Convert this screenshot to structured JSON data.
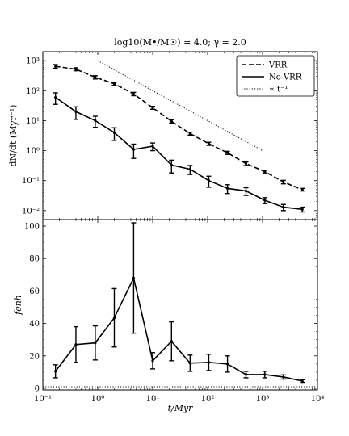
{
  "chart_data": [
    {
      "type": "line",
      "panel": "top",
      "title": "log10(M•/M☉) = 4.0; γ = 2.0",
      "xlabel": "t/Myr",
      "ylabel": "dN/dt (Myr⁻¹)",
      "xscale": "log",
      "yscale": "log",
      "xlim": [
        0.1,
        10000
      ],
      "ylim": [
        0.005,
        2000
      ],
      "legend_position": "top-right",
      "series": [
        {
          "name": "VRR",
          "style": "dashed",
          "x": [
            0.17,
            0.4,
            0.9,
            2.0,
            4.5,
            10,
            22,
            48,
            105,
            230,
            500,
            1100,
            2400,
            5300
          ],
          "y": [
            650,
            520,
            280,
            170,
            78,
            27,
            9.5,
            3.7,
            1.7,
            0.85,
            0.37,
            0.2,
            0.09,
            0.05
          ],
          "err_low": [
            90,
            60,
            35,
            20,
            10,
            3,
            1.2,
            0.4,
            0.2,
            0.1,
            0.05,
            0.02,
            0.012,
            0.005
          ],
          "err_high": [
            90,
            60,
            35,
            20,
            10,
            3,
            1.2,
            0.4,
            0.2,
            0.1,
            0.05,
            0.02,
            0.012,
            0.005
          ]
        },
        {
          "name": "No VRR",
          "style": "solid",
          "x": [
            0.17,
            0.4,
            0.9,
            2.0,
            4.5,
            10,
            22,
            48,
            105,
            230,
            500,
            1100,
            2400,
            5300
          ],
          "y": [
            60,
            20,
            10,
            4,
            1.1,
            1.4,
            0.33,
            0.24,
            0.1,
            0.055,
            0.045,
            0.022,
            0.013,
            0.011
          ],
          "err_low": [
            25,
            9,
            4,
            1.8,
            0.55,
            0.4,
            0.15,
            0.08,
            0.04,
            0.018,
            0.013,
            0.005,
            0.003,
            0.002
          ],
          "err_high": [
            25,
            9,
            4,
            1.8,
            0.55,
            0.4,
            0.15,
            0.08,
            0.04,
            0.018,
            0.013,
            0.005,
            0.003,
            0.002
          ]
        },
        {
          "name": "∝ t⁻¹",
          "style": "dotted",
          "x": [
            1,
            1000
          ],
          "y": [
            1000,
            1
          ]
        }
      ],
      "x_tick_labels": [
        "10⁻¹",
        "10⁰",
        "10¹",
        "10²",
        "10³",
        "10⁴"
      ],
      "y_tick_labels": [
        "10⁻²",
        "10⁻¹",
        "10⁰",
        "10¹",
        "10²",
        "10³"
      ]
    },
    {
      "type": "line",
      "panel": "bottom",
      "xlabel": "t/Myr",
      "ylabel": "f_enh",
      "xscale": "log",
      "yscale": "linear",
      "xlim": [
        0.1,
        10000
      ],
      "ylim": [
        -1,
        104
      ],
      "series": [
        {
          "style": "solid",
          "x": [
            0.17,
            0.4,
            0.9,
            2.0,
            4.5,
            10,
            22,
            48,
            105,
            230,
            500,
            1100,
            2400,
            5300
          ],
          "y": [
            10.5,
            27,
            28,
            43.5,
            68,
            17,
            29,
            15.5,
            16,
            15,
            8.5,
            8.5,
            7,
            4.5
          ],
          "err_low": [
            4,
            11,
            10.5,
            18,
            34,
            5,
            12,
            5,
            5,
            5,
            2,
            2,
            1.3,
            0.8
          ],
          "err_high": [
            4,
            11,
            10.5,
            18,
            34,
            5,
            12,
            5,
            5,
            5,
            2,
            2,
            1.3,
            0.8
          ]
        },
        {
          "style": "dotted",
          "x": [
            0.1,
            10000
          ],
          "y": [
            1,
            1
          ]
        }
      ],
      "x_tick_labels": [
        "10⁻¹",
        "10⁰",
        "10¹",
        "10²",
        "10³",
        "10⁴"
      ],
      "y_tick_labels": [
        "0",
        "20",
        "40",
        "60",
        "80",
        "100"
      ]
    }
  ]
}
